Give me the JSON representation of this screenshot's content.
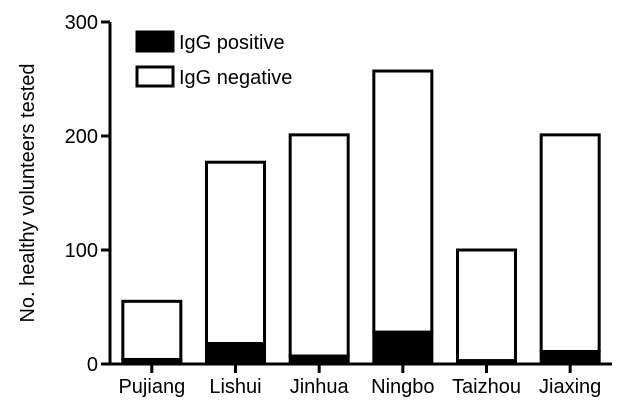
{
  "chart_data": {
    "type": "bar",
    "stacked": true,
    "categories": [
      "Pujiang",
      "Lishui",
      "Jinhua",
      "Ningbo",
      "Taizhou",
      "Jiaxing"
    ],
    "series": [
      {
        "name": "IgG positive",
        "values": [
          4,
          18,
          7,
          28,
          3,
          11
        ],
        "color": "#000000"
      },
      {
        "name": "IgG negative",
        "values": [
          51,
          159,
          194,
          229,
          97,
          190
        ],
        "color": "#ffffff"
      }
    ],
    "ylabel": "No. healthy volunteers tested",
    "xlabel": "",
    "ylim": [
      0,
      300
    ],
    "yticks": [
      0,
      100,
      200,
      300
    ],
    "grid": false,
    "legend_position": "top-left"
  }
}
